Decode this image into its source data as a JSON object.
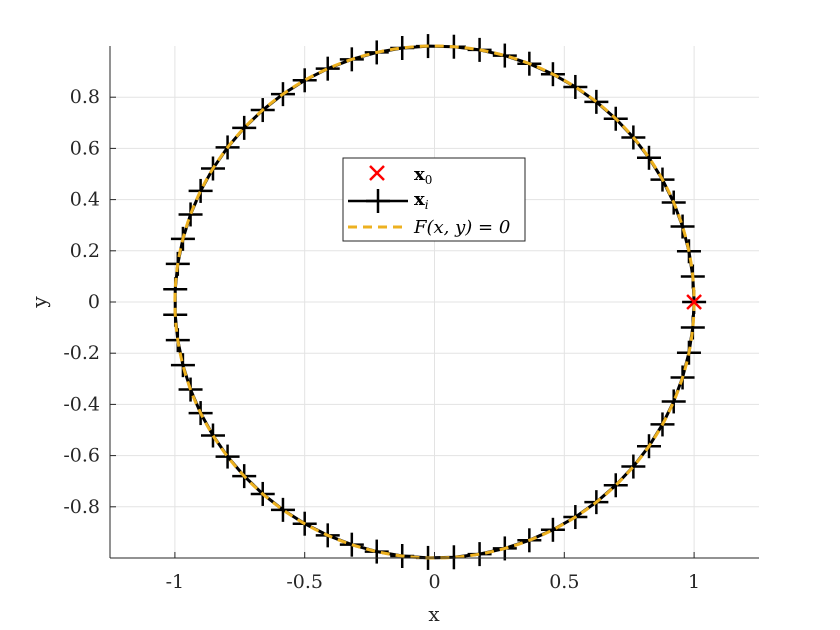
{
  "chart_data": {
    "type": "line",
    "xlabel": "x",
    "ylabel": "y",
    "xlim": [
      -1.25,
      1.25
    ],
    "ylim": [
      -1,
      1
    ],
    "x_ticks": [
      -1,
      -0.5,
      0,
      0.5,
      1
    ],
    "x_tick_labels": [
      "-1",
      "-0.5",
      "0",
      "0.5",
      "1"
    ],
    "y_ticks": [
      -0.8,
      -0.6,
      -0.4,
      -0.2,
      0,
      0.2,
      0.4,
      0.6,
      0.8
    ],
    "y_tick_labels": [
      "-0.8",
      "-0.6",
      "-0.4",
      "-0.2",
      "0",
      "0.2",
      "0.4",
      "0.6",
      "0.8"
    ],
    "grid": true,
    "legend_position": "center",
    "series": [
      {
        "name": "x_0",
        "style": "marker-x",
        "color": "#ff0000",
        "points": [
          [
            1,
            0
          ]
        ]
      },
      {
        "name": "x_i",
        "style": "line-plus",
        "color": "#000000",
        "parametric": "unit-circle",
        "start_angle_deg": 0,
        "point_count": 63
      },
      {
        "name": "F(x,y) = 0",
        "style": "dashed",
        "color": "#edb120",
        "parametric": "unit-circle"
      }
    ],
    "legend_entries": [
      {
        "label_main": "x",
        "label_sub": "0"
      },
      {
        "label_main": "x",
        "label_sub": "i"
      },
      {
        "label_text": "F(x, y) = 0"
      }
    ]
  }
}
